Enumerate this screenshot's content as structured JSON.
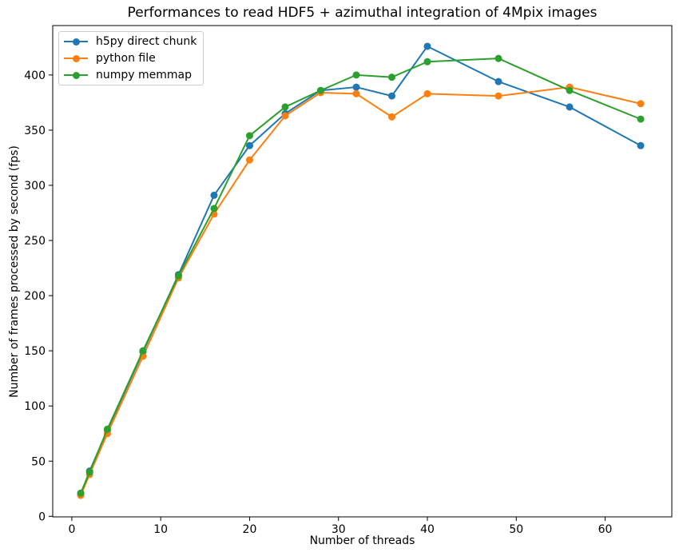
{
  "chart_data": {
    "type": "line",
    "title": "Performances to read HDF5 + azimuthal integration of 4Mpix images",
    "xlabel": "Number of threads",
    "ylabel": "Number of frames processed by second (fps)",
    "x": [
      1,
      2,
      4,
      8,
      12,
      16,
      20,
      24,
      28,
      32,
      36,
      40,
      48,
      56,
      64
    ],
    "series": [
      {
        "name": "h5py direct chunk",
        "color": "#1f77b4",
        "marker": "o",
        "values": [
          20,
          41,
          78,
          149,
          219,
          291,
          336,
          365,
          386,
          389,
          381,
          426,
          394,
          371,
          336
        ]
      },
      {
        "name": "python file",
        "color": "#ff7f0e",
        "marker": "o",
        "values": [
          19,
          38,
          75,
          145,
          216,
          274,
          323,
          363,
          384,
          383,
          362,
          383,
          381,
          389,
          374
        ]
      },
      {
        "name": "numpy memmap",
        "color": "#2ca02c",
        "marker": "o",
        "values": [
          21,
          40,
          79,
          150,
          218,
          279,
          345,
          371,
          386,
          400,
          398,
          412,
          415,
          386,
          360
        ]
      }
    ],
    "xlim": [
      -2.15,
      67.5
    ],
    "ylim": [
      -0.5,
      444.8
    ],
    "xticks": [
      0,
      10,
      20,
      30,
      40,
      50,
      60
    ],
    "yticks": [
      0,
      50,
      100,
      150,
      200,
      250,
      300,
      350,
      400
    ],
    "grid": false,
    "legend_position": "upper left"
  }
}
